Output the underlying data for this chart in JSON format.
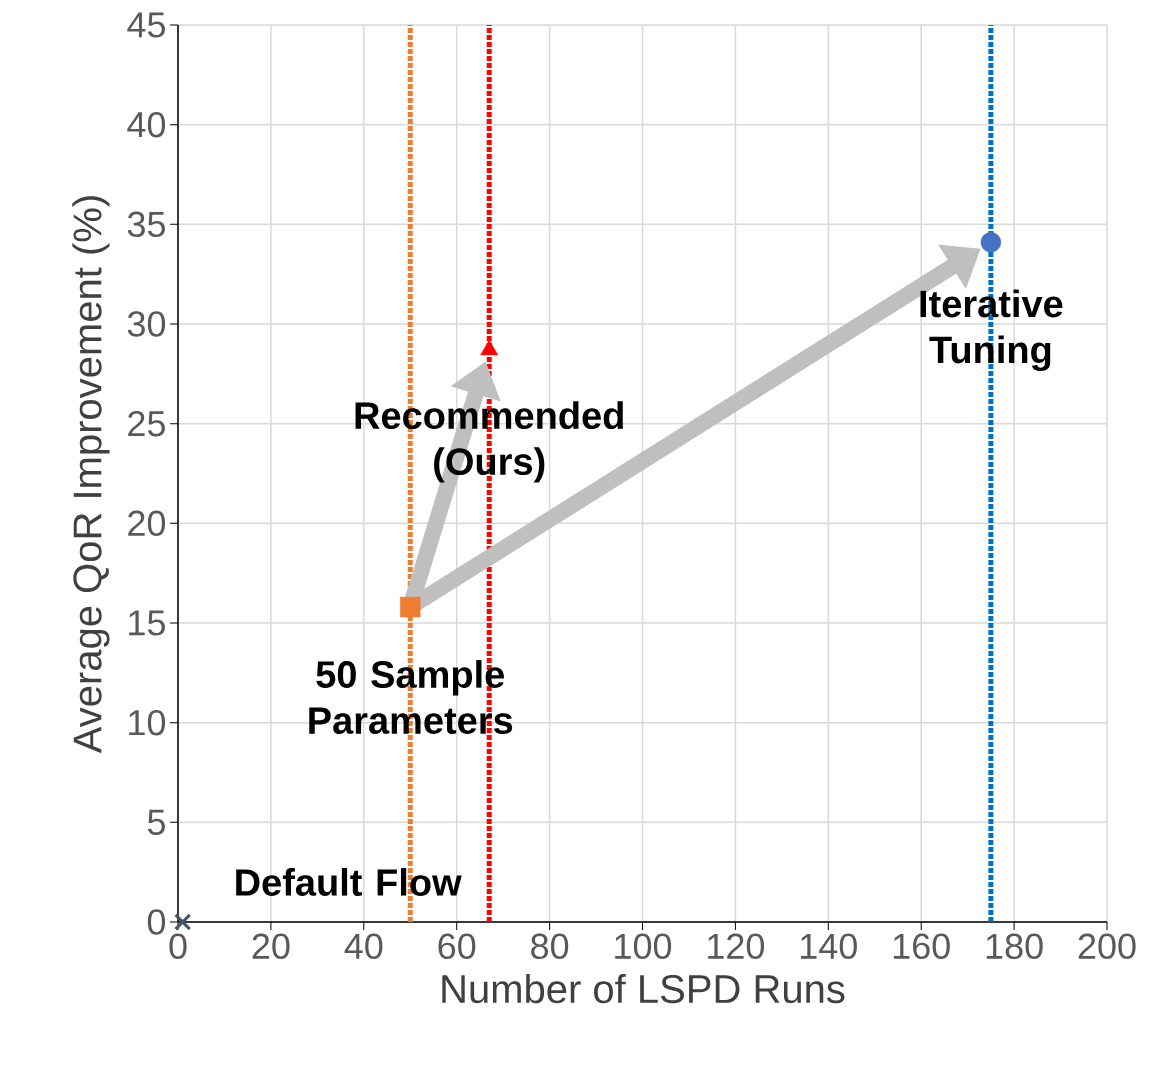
{
  "chart_data": {
    "type": "scatter",
    "xlabel": "Number of LSPD Runs",
    "ylabel": "Average QoR Improvement (%)",
    "xlim": [
      0,
      200
    ],
    "xticks": [
      0,
      20,
      40,
      60,
      80,
      100,
      120,
      140,
      160,
      180,
      200
    ],
    "ylim": [
      0,
      45
    ],
    "yticks": [
      0,
      5,
      10,
      15,
      20,
      25,
      30,
      35,
      40,
      45
    ],
    "grid": true,
    "series": [
      {
        "color": "#44546a",
        "marker": "cross",
        "x": [
          1
        ],
        "values": [
          0
        ]
      },
      {
        "color": "#ed7d31",
        "marker": "square",
        "x": [
          50
        ],
        "values": [
          15.8
        ]
      },
      {
        "color": "#ff0000",
        "marker": "triangle",
        "x": [
          67
        ],
        "values": [
          28.7
        ]
      },
      {
        "color": "#4472c4",
        "marker": "circle",
        "x": [
          175
        ],
        "values": [
          34.1
        ]
      }
    ],
    "ref_lines": [
      {
        "axis": "x",
        "value": 50,
        "color": "#ed7d31",
        "line_style": "dotted"
      },
      {
        "axis": "x",
        "value": 67,
        "color": "#ff0000",
        "line_style": "dotted"
      },
      {
        "axis": "x",
        "value": 175,
        "color": "#0070c0",
        "line_style": "dotted"
      }
    ],
    "annotations": [
      {
        "text": "Default Flow",
        "x": 1,
        "y": 0
      },
      {
        "text": "50 Sample Parameters",
        "x": 50,
        "y": 15.8
      },
      {
        "text": "Recommended (Ours)",
        "x": 67,
        "y": 28.7
      },
      {
        "text": "Iterative Tuning",
        "x": 175,
        "y": 34.1
      }
    ]
  }
}
